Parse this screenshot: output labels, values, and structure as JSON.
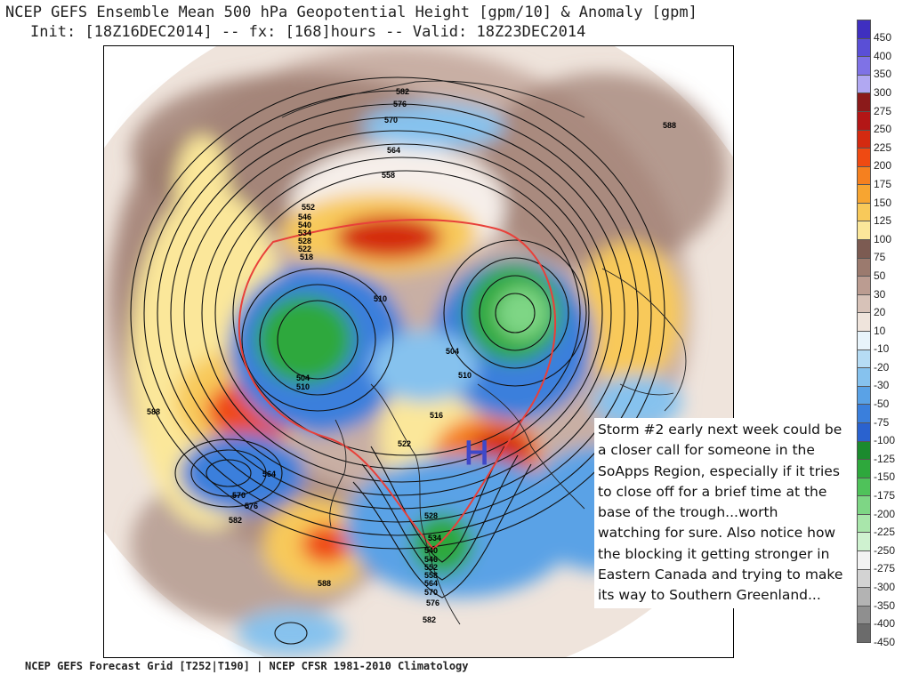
{
  "header": {
    "title": "NCEP GEFS Ensemble Mean 500 hPa Geopotential Height [gpm/10] & Anomaly [gpm]",
    "subtitle": "Init: [18Z16DEC2014] -- fx: [168]hours -- Valid: 18Z23DEC2014"
  },
  "footer": {
    "credit": "NCEP GEFS Forecast Grid [T252|T190] | NCEP CFSR 1981-2010 Climatology"
  },
  "annotation": {
    "text": "Storm #2 early next week could be a closer call for someone in the SoApps Region, especially if it tries to close off for a brief time at the base of the trough...worth watching for sure. Also notice how the blocking it getting stronger in Eastern Canada and trying to make its way to Southern Greenland..."
  },
  "map": {
    "high_marker": "H",
    "contour_labels": [
      "582",
      "576",
      "570",
      "564",
      "558",
      "552",
      "546",
      "540",
      "534",
      "528",
      "522",
      "518",
      "510",
      "504",
      "510",
      "504",
      "510",
      "516",
      "522",
      "588",
      "588",
      "588",
      "564",
      "570",
      "576",
      "582",
      "528",
      "534",
      "540",
      "546",
      "552",
      "558",
      "564",
      "570",
      "576",
      "582",
      "588"
    ]
  },
  "colorbar": {
    "entries": [
      {
        "label": "450",
        "color": "#3f2fc0"
      },
      {
        "label": "400",
        "color": "#5a4fd6"
      },
      {
        "label": "350",
        "color": "#7f72e6"
      },
      {
        "label": "300",
        "color": "#b1a8f2"
      },
      {
        "label": "275",
        "color": "#8b1a1a"
      },
      {
        "label": "250",
        "color": "#b31616"
      },
      {
        "label": "225",
        "color": "#d42a10"
      },
      {
        "label": "200",
        "color": "#ef4a12"
      },
      {
        "label": "175",
        "color": "#f5801f"
      },
      {
        "label": "150",
        "color": "#f7a531"
      },
      {
        "label": "125",
        "color": "#f8c95a"
      },
      {
        "label": "100",
        "color": "#fbe79a"
      },
      {
        "label": "75",
        "color": "#7c5b52"
      },
      {
        "label": "50",
        "color": "#9b7a6e"
      },
      {
        "label": "30",
        "color": "#bb9c91"
      },
      {
        "label": "20",
        "color": "#d7c2b8"
      },
      {
        "label": "10",
        "color": "#efe4dc"
      },
      {
        "label": "-10",
        "color": "#e8f4fb"
      },
      {
        "label": "-20",
        "color": "#b6dcf4"
      },
      {
        "label": "-30",
        "color": "#86c2ee"
      },
      {
        "label": "-50",
        "color": "#5aa2e6"
      },
      {
        "label": "-75",
        "color": "#3a7fdc"
      },
      {
        "label": "-100",
        "color": "#2a62cf"
      },
      {
        "label": "-125",
        "color": "#1b8a2e"
      },
      {
        "label": "-150",
        "color": "#2ea83c"
      },
      {
        "label": "-175",
        "color": "#4fc25a"
      },
      {
        "label": "-200",
        "color": "#7ed685"
      },
      {
        "label": "-225",
        "color": "#a9e6ab"
      },
      {
        "label": "-250",
        "color": "#cff2d0"
      },
      {
        "label": "-275",
        "color": "#f2f2f2"
      },
      {
        "label": "-300",
        "color": "#d3d3d3"
      },
      {
        "label": "-350",
        "color": "#b3b3b3"
      },
      {
        "label": "-400",
        "color": "#8f8f8f"
      },
      {
        "label": "-450",
        "color": "#6b6b6b"
      }
    ]
  }
}
